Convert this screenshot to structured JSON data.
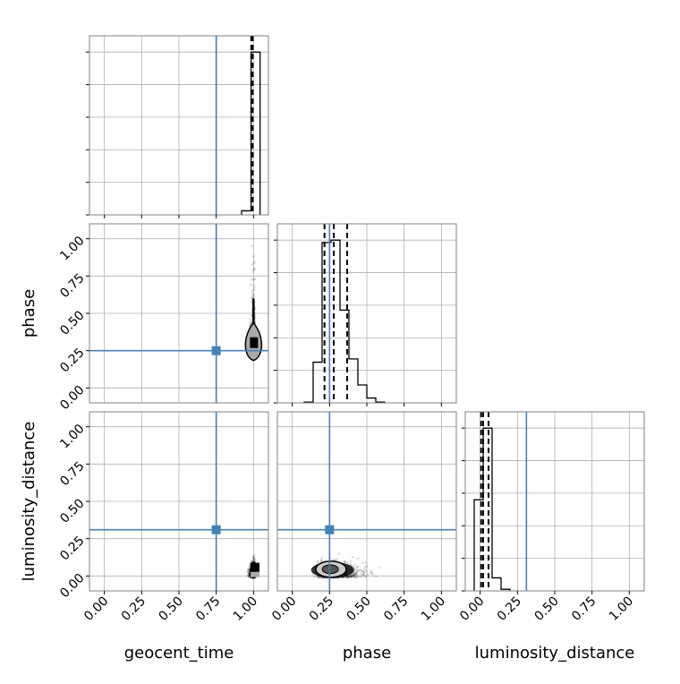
{
  "chart_data": {
    "type": "corner",
    "parameters": [
      "geocent_time",
      "phase",
      "luminosity_distance"
    ],
    "axis_labels": {
      "x": [
        "geocent_time",
        "phase",
        "luminosity_distance"
      ],
      "y": [
        "phase",
        "luminosity_distance"
      ]
    },
    "range": [
      -0.1,
      1.1
    ],
    "tick_labels": [
      "0.00",
      "0.25",
      "0.50",
      "0.75",
      "1.00"
    ],
    "ticks": [
      0,
      0.25,
      0.5,
      0.75,
      1.0
    ],
    "grid": true,
    "colors": {
      "truth": "#4682b4",
      "hist": "#000000",
      "samples": "#000000",
      "grid": "#b0b0b0",
      "frame": "#808080"
    },
    "truths": {
      "geocent_time": 0.75,
      "phase": 0.25,
      "luminosity_distance": 0.31
    },
    "histograms": {
      "geocent_time": {
        "edges": [
          0.92,
          0.984,
          1.044
        ],
        "density": [
          0.025,
          1.0
        ],
        "quantiles": [
          0.985,
          0.99,
          0.995
        ]
      },
      "phase": {
        "edges": [
          0.08,
          0.14,
          0.2,
          0.26,
          0.32,
          0.38,
          0.44,
          0.5,
          0.56,
          0.62
        ],
        "density": [
          0.005,
          0.25,
          0.985,
          1.0,
          0.57,
          0.27,
          0.11,
          0.03,
          0.005
        ],
        "quantiles": [
          0.216,
          0.278,
          0.368
        ]
      },
      "luminosity_distance": {
        "edges": [
          -0.04,
          0.02,
          0.08,
          0.14,
          0.2
        ],
        "density": [
          0.56,
          1.0,
          0.08,
          0.01
        ],
        "quantiles": [
          0.006,
          0.02,
          0.056
        ]
      }
    },
    "samples_2d": [
      {
        "x": "geocent_time",
        "y": "phase",
        "x_mean": 1.0,
        "x_std": 0.02,
        "y_mean": 0.29,
        "y_std": 0.09
      },
      {
        "x": "geocent_time",
        "y": "luminosity_distance",
        "x_mean": 1.0,
        "x_std": 0.02,
        "y_mean": 0.05,
        "y_std": 0.05
      },
      {
        "x": "phase",
        "y": "luminosity_distance",
        "x_mean": 0.29,
        "x_std": 0.09,
        "y_mean": 0.05,
        "y_std": 0.05
      }
    ]
  }
}
